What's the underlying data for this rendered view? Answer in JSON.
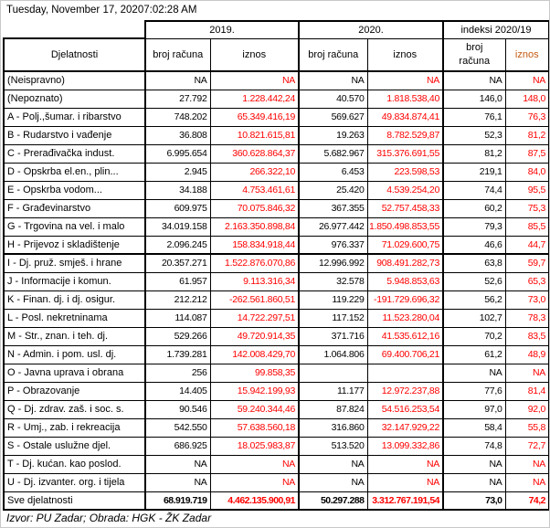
{
  "titlebar": {
    "datetime": "Tuesday, November 17, 20207:02:28 AM"
  },
  "table": {
    "group_headers": {
      "y2019": "2019.",
      "y2020": "2020.",
      "index": "indeksi 2020/19"
    },
    "column_headers": {
      "activities": "Djelatnosti",
      "accounts_2019": "broj računa",
      "amount_2019": "iznos",
      "accounts_2020": "broj računa",
      "amount_2020": "iznos",
      "accounts_index": "broj računa",
      "amount_index": "iznos"
    },
    "rows": [
      {
        "cells": [
          "(Neispravno)",
          "NA",
          "NA",
          "NA",
          "NA",
          "NA",
          "NA"
        ]
      },
      {
        "cells": [
          "(Nepoznato)",
          "27.792",
          "1.228.442,24",
          "40.570",
          "1.818.538,40",
          "146,0",
          "148,0"
        ]
      },
      {
        "cells": [
          "A - Polj.,šumar. i ribarstvo",
          "748.202",
          "65.349.416,19",
          "569.627",
          "49.834.874,41",
          "76,1",
          "76,3"
        ]
      },
      {
        "cells": [
          "B - Rudarstvo i vađenje",
          "36.808",
          "10.821.615,81",
          "19.263",
          "8.782.529,87",
          "52,3",
          "81,2"
        ]
      },
      {
        "cells": [
          "C - Prerađivačka indust.",
          "6.995.654",
          "360.628.864,37",
          "5.682.967",
          "315.376.691,55",
          "81,2",
          "87,5"
        ]
      },
      {
        "cells": [
          "D - Opskrba el.en., plin...",
          "2.945",
          "266.322,10",
          "6.453",
          "223.598,53",
          "219,1",
          "84,0"
        ]
      },
      {
        "cells": [
          "E - Opskrba vodom...",
          "34.188",
          "4.753.461,61",
          "25.420",
          "4.539.254,20",
          "74,4",
          "95,5"
        ]
      },
      {
        "cells": [
          "F - Građevinarstvo",
          "609.975",
          "70.075.846,32",
          "367.355",
          "52.757.458,33",
          "60,2",
          "75,3"
        ]
      },
      {
        "cells": [
          "G - Trgovina na vel. i malo",
          "34.019.158",
          "2.163.350.898,84",
          "26.977.442",
          "1.850.498.853,55",
          "79,3",
          "85,5"
        ]
      },
      {
        "cells": [
          "H - Prijevoz i skladištenje",
          "2.096.245",
          "158.834.918,44",
          "976.337",
          "71.029.600,75",
          "46,6",
          "44,7"
        ],
        "section_end": true
      },
      {
        "cells": [
          "I - Dj. pruž. smješ. i hrane",
          "20.357.271",
          "1.522.876.070,86",
          "12.996.992",
          "908.491.282,73",
          "63,8",
          "59,7"
        ]
      },
      {
        "cells": [
          "J - Informacije i komun.",
          "61.957",
          "9.113.316,34",
          "32.578",
          "5.948.853,63",
          "52,6",
          "65,3"
        ]
      },
      {
        "cells": [
          "K - Finan. dj. i dj. osigur.",
          "212.212",
          "-262.561.860,51",
          "119.229",
          "-191.729.696,32",
          "56,2",
          "73,0"
        ]
      },
      {
        "cells": [
          "L - Posl. nekretninama",
          "114.087",
          "14.722.297,51",
          "117.152",
          "11.523.280,04",
          "102,7",
          "78,3"
        ]
      },
      {
        "cells": [
          "M - Str., znan. i teh. dj.",
          "529.266",
          "49.720.914,35",
          "371.716",
          "41.535.612,16",
          "70,2",
          "83,5"
        ]
      },
      {
        "cells": [
          "N - Admin. i pom. usl. dj.",
          "1.739.281",
          "142.008.429,70",
          "1.064.806",
          "69.400.706,21",
          "61,2",
          "48,9"
        ]
      },
      {
        "cells": [
          "O - Javna uprava i obrana",
          "256",
          "99.858,35",
          "",
          "",
          "NA",
          "NA"
        ]
      },
      {
        "cells": [
          "P - Obrazovanje",
          "14.405",
          "15.942.199,93",
          "11.177",
          "12.972.237,88",
          "77,6",
          "81,4"
        ]
      },
      {
        "cells": [
          "Q - Dj. zdrav. zaš. i soc. s.",
          "90.546",
          "59.240.344,46",
          "87.824",
          "54.516.253,54",
          "97,0",
          "92,0"
        ]
      },
      {
        "cells": [
          "R - Umj., zab. i rekreacija",
          "542.550",
          "57.638.560,18",
          "316.860",
          "32.147.929,22",
          "58,4",
          "55,8"
        ]
      },
      {
        "cells": [
          "S - Ostale uslužne djel.",
          "686.925",
          "18.025.983,87",
          "513.520",
          "13.099.332,86",
          "74,8",
          "72,7"
        ]
      },
      {
        "cells": [
          "T - Dj. kućan. kao poslod.",
          "NA",
          "NA",
          "NA",
          "NA",
          "NA",
          "NA"
        ]
      },
      {
        "cells": [
          "U - Dj. izvanter. org. i tijela",
          "NA",
          "NA",
          "NA",
          "NA",
          "NA",
          "NA"
        ]
      },
      {
        "cells": [
          "Sve djelatnosti",
          "68.919.719",
          "4.462.135.900,91",
          "50.297.288",
          "3.312.767.191,54",
          "73,0",
          "74,2"
        ],
        "total": true
      }
    ]
  },
  "footer": {
    "source": "Izvor: PU Zadar; Obrada: HGK - ŽK Zadar"
  },
  "colors": {
    "amount_value_red": "#ff0000",
    "index_amount_header_orange": "#c55a11",
    "grid_black": "#000000"
  }
}
